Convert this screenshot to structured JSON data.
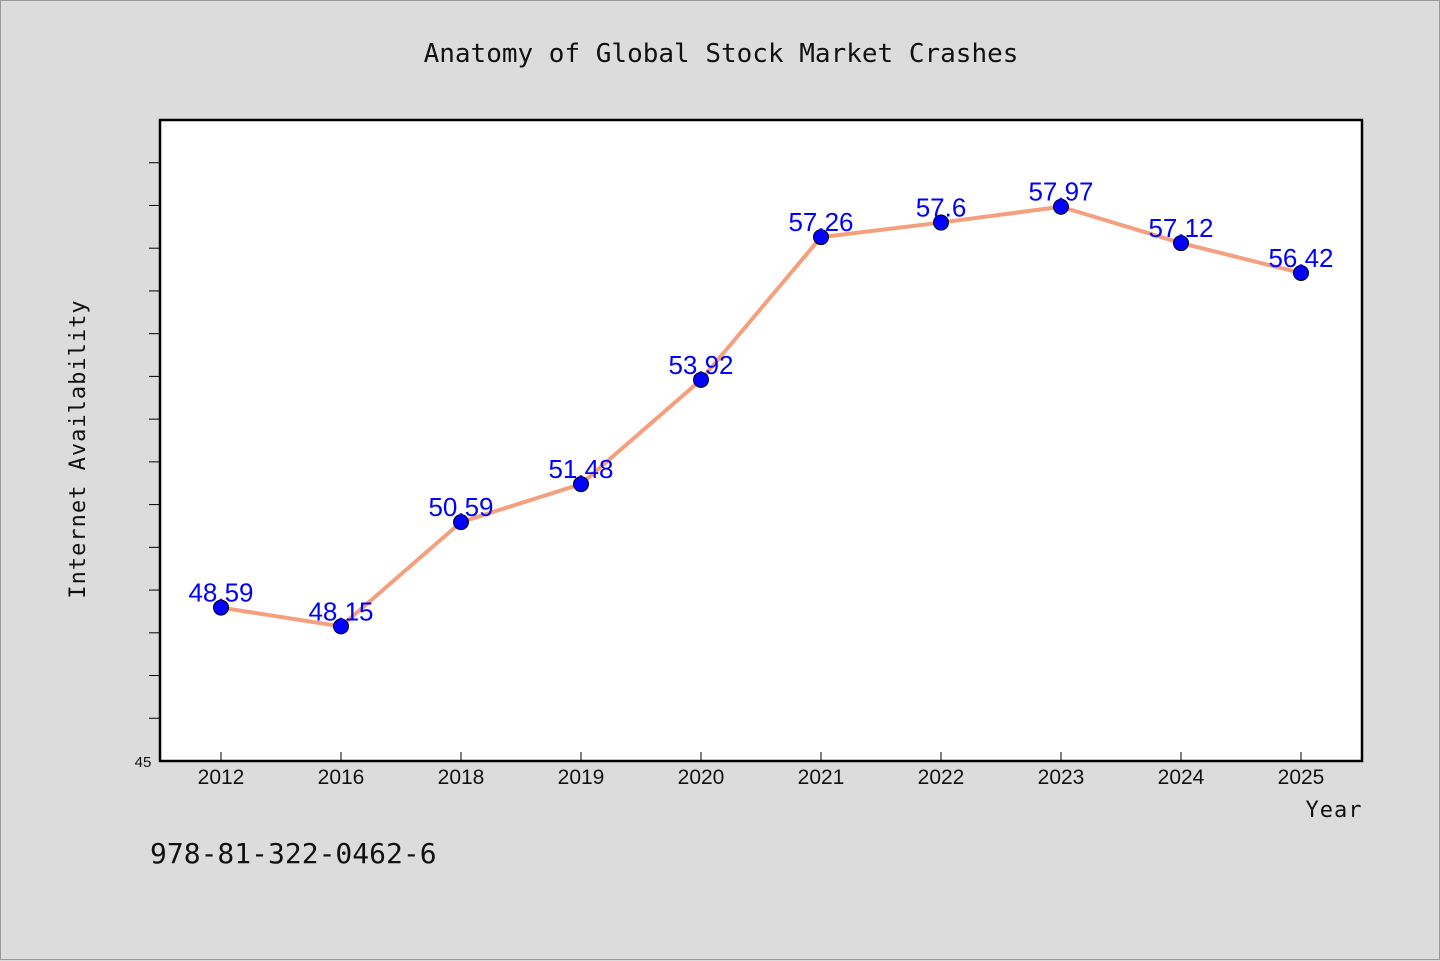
{
  "chart_data": {
    "type": "line",
    "title": "Anatomy of Global Stock Market Crashes",
    "xlabel": "Year",
    "ylabel": "Internet Availability",
    "categories": [
      "2012",
      "2016",
      "2018",
      "2019",
      "2020",
      "2021",
      "2022",
      "2023",
      "2024",
      "2025"
    ],
    "values": [
      48.59,
      48.15,
      50.59,
      51.48,
      53.92,
      57.26,
      57.6,
      57.97,
      57.12,
      56.42
    ],
    "data_labels": [
      "48.59",
      "48.15",
      "50.59",
      "51.48",
      "53.92",
      "57.26",
      "57.6",
      "57.97",
      "57.12",
      "56.42"
    ],
    "ylim": [
      45,
      60
    ],
    "y_tick_min_label": "45",
    "grid": false,
    "legend": "none",
    "line_color": "#f4a07e",
    "marker_color": "#0000ff"
  },
  "footer": {
    "isbn": "978-81-322-0462-6"
  }
}
